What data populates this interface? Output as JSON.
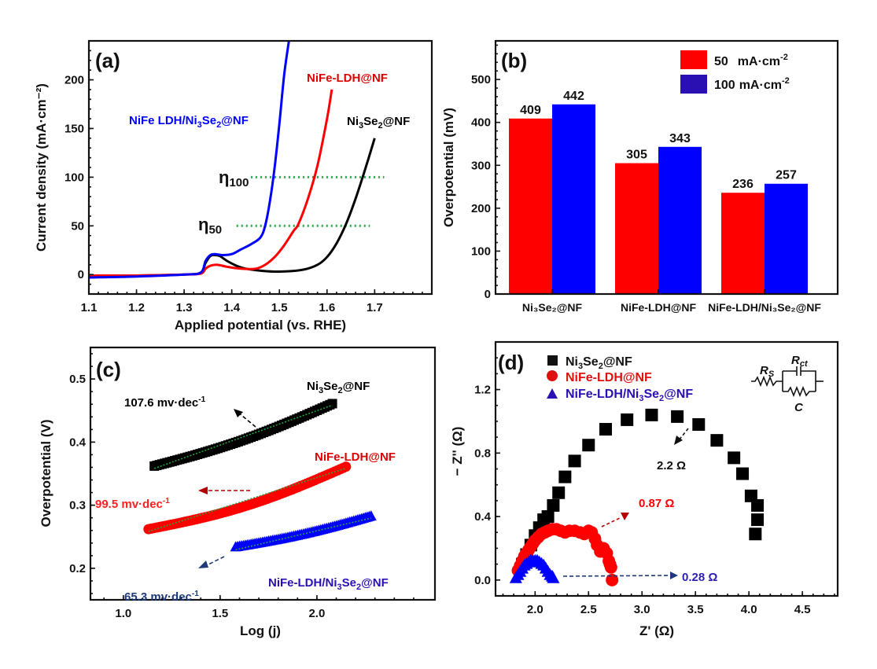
{
  "colors": {
    "black": "#000000",
    "red": "#ff0000",
    "blue": "#0000ff",
    "legend_blue": "#2a0fb3",
    "dark_red": "#b30000",
    "navy": "#1f3a7a",
    "green_fit": "#22aa44",
    "ann_blue": "#2d1fb0"
  },
  "chart_data": [
    {
      "id": "a",
      "type": "line",
      "panel_label": "(a)",
      "title": "",
      "xlabel": "Applied potential (vs. RHE)",
      "ylabel": "Current density (mA·cm⁻²)",
      "xlim": [
        1.1,
        1.82
      ],
      "ylim": [
        -20,
        240
      ],
      "xticks": [
        1.1,
        1.2,
        1.3,
        1.4,
        1.5,
        1.6,
        1.7
      ],
      "xtick_labels": [
        "1.1",
        "1.2",
        "1.3",
        "1.4",
        "1.5",
        "1.6",
        "1.7"
      ],
      "yticks": [
        0,
        50,
        100,
        150,
        200
      ],
      "ytick_labels": [
        "0",
        "50",
        "100",
        "150",
        "200"
      ],
      "series": [
        {
          "name": "Ni3Se2@NF",
          "label": "Ni₃Se₂@NF",
          "color": "#000000",
          "x": [
            1.1,
            1.2,
            1.3,
            1.335,
            1.345,
            1.355,
            1.365,
            1.375,
            1.39,
            1.41,
            1.43,
            1.46,
            1.5,
            1.55,
            1.58,
            1.6,
            1.62,
            1.64,
            1.66,
            1.68,
            1.7
          ],
          "y": [
            -2,
            -1,
            0,
            2,
            12,
            19,
            20,
            19,
            14,
            9,
            6,
            4,
            3,
            5,
            10,
            18,
            32,
            52,
            78,
            108,
            140
          ]
        },
        {
          "name": "NiFe-LDH@NF",
          "label": "NiFe-LDH@NF",
          "color": "#ff0000",
          "x": [
            1.1,
            1.2,
            1.3,
            1.335,
            1.345,
            1.355,
            1.37,
            1.39,
            1.42,
            1.45,
            1.47,
            1.49,
            1.51,
            1.53,
            1.54,
            1.56,
            1.58,
            1.6,
            1.61
          ],
          "y": [
            -1,
            -1,
            0,
            1,
            6,
            9,
            10,
            8,
            6,
            6,
            10,
            18,
            30,
            45,
            52,
            78,
            112,
            160,
            190
          ]
        },
        {
          "name": "NiFe LDH/Ni3Se2@NF",
          "label": "NiFe LDH/Ni₃Se₂@NF",
          "color": "#0000ff",
          "x": [
            1.1,
            1.2,
            1.3,
            1.335,
            1.345,
            1.355,
            1.365,
            1.38,
            1.4,
            1.42,
            1.44,
            1.46,
            1.47,
            1.48,
            1.49,
            1.5,
            1.51,
            1.52
          ],
          "y": [
            -3,
            -2,
            0,
            2,
            14,
            20,
            21,
            20,
            21,
            26,
            31,
            38,
            50,
            75,
            110,
            155,
            205,
            240
          ]
        }
      ],
      "reference_lines": [
        {
          "label_main": "η",
          "label_sub": "100",
          "y": 100,
          "x_start": 1.44,
          "x_end": 1.72,
          "color": "#22aa44"
        },
        {
          "label_main": "η",
          "label_sub": "50",
          "y": 50,
          "x_start": 1.41,
          "x_end": 1.69,
          "color": "#22aa44"
        }
      ],
      "annotations": [
        {
          "text": "NiFe LDH/Ni₃Se₂@NF",
          "color": "#0000ff",
          "position": "upper-left"
        },
        {
          "text": "NiFe-LDH@NF",
          "color": "#dd0000",
          "position": "top-right"
        },
        {
          "text": "Ni₃Se₂@NF",
          "color": "#000000",
          "position": "right"
        }
      ]
    },
    {
      "id": "b",
      "type": "bar",
      "panel_label": "(b)",
      "title": "",
      "xlabel": "",
      "ylabel": "Overpotential (mV)",
      "ylim": [
        0,
        590
      ],
      "yticks": [
        0,
        100,
        200,
        300,
        400,
        500
      ],
      "ytick_labels": [
        "0",
        "100",
        "200",
        "300",
        "400",
        "500"
      ],
      "categories": [
        "Ni₃Se₂@NF",
        "NiFe-LDH@NF",
        "NiFe-LDH/Ni₃Se₂@NF"
      ],
      "series": [
        {
          "name": "50 mA·cm⁻²",
          "legend_value": "50",
          "legend_unit": "mA·cm",
          "legend_sup": "-2",
          "color": "#ff0000",
          "values": [
            409,
            305,
            236
          ]
        },
        {
          "name": "100 mA·cm⁻²",
          "legend_value": "100",
          "legend_unit": "mA·cm",
          "legend_sup": "-2",
          "color": "#0000ff",
          "legend_color": "#2a0fb3",
          "values": [
            442,
            343,
            257
          ]
        }
      ],
      "data_labels": [
        [
          "409",
          "305",
          "236"
        ],
        [
          "442",
          "343",
          "257"
        ]
      ],
      "legend_position": "top-right"
    },
    {
      "id": "c",
      "type": "scatter",
      "panel_label": "(c)",
      "title": "",
      "xlabel": "Log (j)",
      "ylabel": "Overpotential (V)",
      "xlim": [
        0.83,
        2.61
      ],
      "ylim": [
        0.15,
        0.55
      ],
      "xticks": [
        1.0,
        1.5,
        2.0
      ],
      "xtick_labels": [
        "1.0",
        "1.5",
        "2.0"
      ],
      "yticks": [
        0.2,
        0.3,
        0.4,
        0.5
      ],
      "ytick_labels": [
        "0.2",
        "0.3",
        "0.4",
        "0.5"
      ],
      "series": [
        {
          "name": "Ni3Se2@NF",
          "label": "Ni₃Se₂@NF",
          "color": "#000000",
          "marker": "square",
          "x_range": [
            1.16,
            2.08
          ],
          "y_start": 0.362,
          "y_end": 0.461,
          "curvature": 0.008,
          "tafel_slope": "107.6 mv·dec",
          "tafel_sup": "-1"
        },
        {
          "name": "NiFe-LDH@NF",
          "label": "NiFe-LDH@NF",
          "color": "#ff0000",
          "marker": "circle",
          "x_range": [
            1.13,
            2.15
          ],
          "y_start": 0.262,
          "y_end": 0.361,
          "curvature": 0.012,
          "tafel_slope": "99.5 mv·dec",
          "tafel_sup": "-1"
        },
        {
          "name": "NiFe-LDH/Ni3Se2@NF",
          "label": "NiFe-LDH/Ni₃Se₂@NF",
          "color": "#0000ff",
          "marker": "triangle",
          "x_range": [
            1.58,
            2.28
          ],
          "y_start": 0.233,
          "y_end": 0.282,
          "curvature": 0.004,
          "tafel_slope": "65.3 mv·dec",
          "tafel_sup": "-1"
        }
      ],
      "fit_color": "#22aa44"
    },
    {
      "id": "d",
      "type": "scatter",
      "panel_label": "(d)",
      "title": "",
      "xlabel": "Z' (Ω)",
      "ylabel": "− Z'' (Ω)",
      "xlim": [
        1.63,
        4.83
      ],
      "ylim": [
        -0.1,
        1.5
      ],
      "xticks": [
        2.0,
        2.5,
        3.0,
        3.5,
        4.0,
        4.5
      ],
      "xtick_labels": [
        "2.0",
        "2.5",
        "3.0",
        "3.5",
        "4.0",
        "4.5"
      ],
      "yticks": [
        0.0,
        0.4,
        0.8,
        1.2
      ],
      "ytick_labels": [
        "0.0",
        "0.4",
        "0.8",
        "1.2"
      ],
      "series": [
        {
          "name": "Ni3Se2@NF",
          "label_main": "Ni",
          "label_sub1": "3",
          "label_mid": "Se",
          "label_sub2": "2",
          "label_end": "@NF",
          "color": "#000000",
          "legend_color": "#111111",
          "marker": "square",
          "x": [
            1.88,
            1.92,
            1.96,
            2.0,
            2.04,
            2.08,
            2.12,
            2.17,
            2.22,
            2.28,
            2.37,
            2.5,
            2.66,
            2.86,
            3.09,
            3.33,
            3.53,
            3.7,
            3.86,
            3.94,
            4.02,
            4.08,
            4.08,
            4.06
          ],
          "y": [
            0.1,
            0.16,
            0.22,
            0.28,
            0.33,
            0.38,
            0.4,
            0.47,
            0.55,
            0.65,
            0.75,
            0.85,
            0.95,
            1.01,
            1.04,
            1.03,
            0.98,
            0.88,
            0.77,
            0.67,
            0.53,
            0.47,
            0.38,
            0.29
          ]
        },
        {
          "name": "NiFe-LDH@NF",
          "label_main": "NiFe-LDH@NF",
          "color": "#ff0000",
          "legend_color": "#e01010",
          "marker": "circle",
          "x": [
            1.84,
            1.86,
            1.88,
            1.9,
            1.92,
            1.94,
            1.96,
            1.98,
            2.0,
            2.03,
            2.06,
            2.09,
            2.12,
            2.16,
            2.2,
            2.24,
            2.28,
            2.32,
            2.37,
            2.42,
            2.46,
            2.5,
            2.53,
            2.56,
            2.58,
            2.61,
            2.64,
            2.67,
            2.69,
            2.7,
            2.71,
            2.72
          ],
          "y": [
            0.06,
            0.09,
            0.12,
            0.15,
            0.17,
            0.19,
            0.21,
            0.23,
            0.25,
            0.27,
            0.29,
            0.3,
            0.31,
            0.32,
            0.32,
            0.31,
            0.3,
            0.31,
            0.31,
            0.3,
            0.29,
            0.31,
            0.3,
            0.26,
            0.22,
            0.18,
            0.2,
            0.17,
            0.12,
            0.1,
            0.08,
            0.0
          ]
        },
        {
          "name": "NiFe-LDH/Ni3Se2@NF",
          "label_main": "NiFe-LDH/Ni",
          "label_sub1": "3",
          "label_mid": "Se",
          "label_sub2": "2",
          "label_end": "@NF",
          "color": "#0000ff",
          "legend_color": "#2a0fb3",
          "marker": "triangle",
          "x": [
            1.82,
            1.84,
            1.86,
            1.88,
            1.9,
            1.92,
            1.94,
            1.96,
            1.98,
            2.0,
            2.02,
            2.04,
            2.06,
            2.08,
            2.1,
            2.12,
            2.14,
            2.16,
            2.17
          ],
          "y": [
            0.01,
            0.03,
            0.05,
            0.07,
            0.09,
            0.1,
            0.11,
            0.12,
            0.12,
            0.12,
            0.12,
            0.11,
            0.1,
            0.09,
            0.07,
            0.05,
            0.03,
            0.02,
            0.01
          ]
        }
      ],
      "annotations": [
        {
          "text": "2.2 Ω",
          "color": "#000000"
        },
        {
          "text": "0.87 Ω",
          "color": "#ff0000"
        },
        {
          "text": "0.28 Ω",
          "color": "#2d1fb0"
        }
      ],
      "circuit": {
        "rs_label_main": "R",
        "rs_label_sub": "S",
        "rct_label_main": "R",
        "rct_label_sub": "ct",
        "c_label": "C"
      },
      "legend_position": "top-left"
    }
  ]
}
